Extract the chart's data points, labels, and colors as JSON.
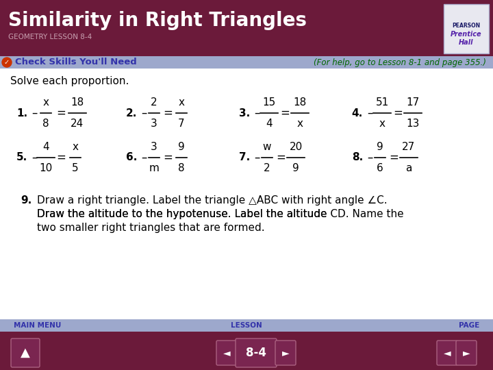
{
  "title": "Similarity in Right Triangles",
  "subtitle": "GEOMETRY LESSON 8-4",
  "check_skills": "Check Skills You'll Need",
  "for_help": "(For help, go to Lesson 8-1 and page 355.)",
  "solve_text": "Solve each proportion.",
  "header_bg": "#6B1A3A",
  "header_text_color": "#FFFFFF",
  "subtitle_color": "#C8A0B0",
  "bar_bg": "#9DA8CC",
  "check_color": "#CC3300",
  "check_text_color": "#3333AA",
  "for_help_color": "#006600",
  "content_bg": "#FFFFFF",
  "footer_bg_top": "#9DA8CC",
  "footer_bg_bottom": "#6B1A3A",
  "footer_text_color": "#FFFFFF",
  "footer_label_color": "#3333AA",
  "page_label": "8-4",
  "pearson_bg": "#E8E8F0",
  "pearson_border": "#AAAACC"
}
